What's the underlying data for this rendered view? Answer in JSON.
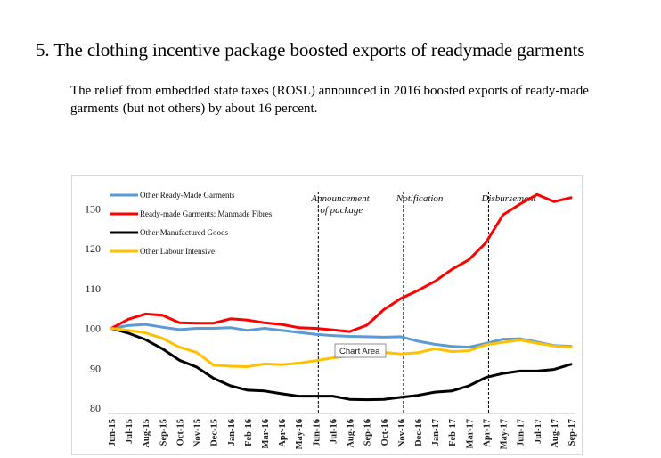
{
  "heading": "5. The clothing incentive package boosted exports of readymade garments",
  "subheading": "The relief from embedded state taxes (ROSL) announced in 2016 boosted exports of ready-made garments (but not others) by about 16 percent.",
  "tooltip": "Chart Area",
  "chart_data": {
    "type": "line",
    "categories": [
      "Jun-15",
      "Jul-15",
      "Aug-15",
      "Sep-15",
      "Oct-15",
      "Nov-15",
      "Dec-15",
      "Jan-16",
      "Feb-16",
      "Mar-16",
      "Apr-16",
      "May-16",
      "Jun-16",
      "Jul-16",
      "Aug-16",
      "Sep-16",
      "Oct-16",
      "Nov-16",
      "Dec-16",
      "Jan-17",
      "Feb-17",
      "Mar-17",
      "Apr-17",
      "May-17",
      "Jun-17",
      "Jul-17",
      "Aug-17",
      "Sep-17"
    ],
    "ylim": [
      80,
      135
    ],
    "yticks": [
      80,
      90,
      100,
      110,
      120,
      130
    ],
    "grid": false,
    "legend_position": "top-left",
    "series": [
      {
        "name": "Other Ready-Made Garments",
        "color": "#5b9bd5",
        "values": [
          100,
          100.7,
          101,
          100.3,
          99.7,
          100,
          100,
          100.2,
          99.5,
          100,
          99.5,
          99,
          98.5,
          98.2,
          98,
          97.9,
          97.8,
          97.9,
          96.8,
          96,
          95.5,
          95.3,
          96.2,
          97.3,
          97.4,
          96.6,
          95.7,
          95.5
        ]
      },
      {
        "name": "Ready-made Garments: Manmade Fibres",
        "color": "#ff0000",
        "values": [
          100,
          102.3,
          103.6,
          103.3,
          101.4,
          101.3,
          101.3,
          102.4,
          102.1,
          101.4,
          101,
          100.2,
          100,
          99.6,
          99.2,
          100.8,
          104.7,
          107.5,
          109.5,
          111.8,
          114.8,
          117.2,
          121.5,
          128.5,
          131.2,
          133.6,
          131.8,
          132.8
        ]
      },
      {
        "name": "Other Manufactured Goods",
        "color": "#000000",
        "values": [
          100,
          98.8,
          97.2,
          94.9,
          92,
          90.3,
          87.5,
          85.6,
          84.5,
          84.3,
          83.6,
          83,
          83,
          83,
          82.2,
          82.1,
          82.2,
          82.7,
          83.2,
          84,
          84.3,
          85.6,
          87.7,
          88.7,
          89.3,
          89.3,
          89.7,
          91
        ]
      },
      {
        "name": "Other Labour Intensive",
        "color": "#ffc000",
        "values": [
          100,
          99.5,
          98.9,
          97.5,
          95.3,
          94,
          90.8,
          90.5,
          90.4,
          91.1,
          90.9,
          91.3,
          91.9,
          92.6,
          93.1,
          93.7,
          94,
          93.6,
          93.9,
          94.9,
          94.2,
          94.4,
          95.9,
          96.5,
          97.1,
          96.3,
          95.6,
          95.3
        ]
      }
    ],
    "events": [
      {
        "label_lines": [
          "Announcement",
          "of package"
        ],
        "at": "Jun-16"
      },
      {
        "label_lines": [
          "Notification"
        ],
        "at": "Nov-16"
      },
      {
        "label_lines": [
          "Disbursement"
        ],
        "at": "Apr-17"
      }
    ]
  }
}
